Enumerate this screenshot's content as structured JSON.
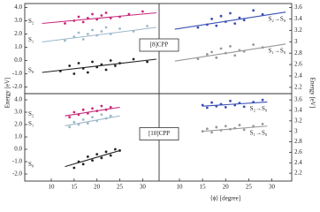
{
  "chart_data": [
    {
      "type": "scatter",
      "ylabel": "Energy [eV]",
      "annotation": "[8]CPP",
      "xlim": [
        4.2,
        33.6
      ],
      "ylim": [
        -2.5,
        4.3
      ],
      "yticks": [
        {
          "value": 4,
          "label": "4.0"
        },
        {
          "value": 3,
          "label": "3.0"
        },
        {
          "value": 2,
          "label": "2.0"
        },
        {
          "value": 1,
          "label": "1.0"
        },
        {
          "value": 0,
          "label": "0.0"
        },
        {
          "value": -1,
          "label": "-1.0"
        },
        {
          "value": -2,
          "label": "-2.0"
        }
      ],
      "series": [
        {
          "name": "S₂",
          "color": "#c8287a",
          "x": [
            13,
            15,
            16,
            17,
            18,
            19,
            20,
            21,
            22,
            23,
            25,
            27,
            30
          ],
          "values": [
            2.8,
            3.0,
            3.3,
            2.9,
            3.2,
            3.5,
            3.1,
            3.4,
            3.6,
            3.2,
            3.3,
            3.5,
            3.7
          ],
          "fit": {
            "x": [
              8,
              33
            ],
            "values": [
              2.8,
              3.6
            ]
          }
        },
        {
          "name": "S₁",
          "color": "#9cb8c8",
          "x": [
            13,
            15,
            16,
            17,
            18,
            19,
            20,
            21,
            22,
            23,
            25,
            28,
            31
          ],
          "values": [
            1.5,
            1.8,
            2.1,
            1.6,
            2.0,
            2.3,
            1.9,
            2.2,
            2.5,
            2.0,
            2.4,
            2.2,
            2.6
          ],
          "fit": {
            "x": [
              8,
              33
            ],
            "values": [
              1.4,
              2.5
            ]
          }
        },
        {
          "name": "S₀",
          "color": "#222222",
          "x": [
            12,
            14,
            15,
            16,
            17,
            18,
            19,
            20,
            21,
            22,
            23,
            24,
            25,
            28,
            31
          ],
          "values": [
            -0.8,
            -0.4,
            -1.0,
            -0.2,
            -0.6,
            -0.9,
            -0.1,
            -0.5,
            -0.3,
            -0.7,
            0.0,
            -0.4,
            -0.2,
            0.1,
            -0.1
          ],
          "fit": {
            "x": [
              8,
              33
            ],
            "values": [
              -0.9,
              0.1
            ]
          }
        }
      ]
    },
    {
      "type": "scatter",
      "ylabel": "Energy [eV]",
      "xlim": [
        5.6,
        34.3
      ],
      "ylim": [
        2.09,
        3.67
      ],
      "yticks": [
        3.6,
        3.4,
        3.2,
        3.0,
        2.8,
        2.6,
        2.4,
        2.2
      ],
      "series": [
        {
          "name": "S₂→S₀",
          "color": "#3a4fb5",
          "x": [
            14,
            16,
            17,
            18,
            19,
            20,
            21,
            22,
            23,
            24,
            26,
            28
          ],
          "values": [
            3.25,
            3.3,
            3.4,
            3.28,
            3.45,
            3.35,
            3.5,
            3.32,
            3.42,
            3.38,
            3.55,
            3.48
          ],
          "fit": {
            "x": [
              9,
              33
            ],
            "values": [
              3.22,
              3.52
            ]
          }
        },
        {
          "name": "S₁→S₀",
          "color": "#999999",
          "x": [
            14,
            16,
            17,
            18,
            19,
            20,
            21,
            22,
            23,
            24,
            26,
            28
          ],
          "values": [
            2.7,
            2.78,
            2.82,
            2.72,
            2.88,
            2.8,
            2.92,
            2.76,
            2.85,
            2.83,
            2.95,
            2.9
          ],
          "fit": {
            "x": [
              9,
              33
            ],
            "values": [
              2.66,
              2.96
            ]
          }
        }
      ]
    },
    {
      "type": "scatter",
      "annotation": "[10]CPP",
      "xlim": [
        4.2,
        33.6
      ],
      "ylim": [
        -2.57,
        4.5
      ],
      "xticks": [
        10,
        15,
        20,
        25,
        30
      ],
      "yticks": [
        {
          "value": 4,
          "label": "4.0"
        },
        {
          "value": 3,
          "label": "3.0"
        },
        {
          "value": 2,
          "label": "2.0"
        },
        {
          "value": 1,
          "label": "1.0"
        },
        {
          "value": 0,
          "label": "0.0"
        },
        {
          "value": -1,
          "label": "-1.0"
        },
        {
          "value": -2,
          "label": "-2.0"
        }
      ],
      "series": [
        {
          "name": "S₂",
          "color": "#c8287a",
          "x": [
            14,
            15,
            16,
            17,
            18,
            19,
            20,
            21,
            22,
            23
          ],
          "values": [
            2.6,
            3.0,
            2.8,
            3.2,
            2.9,
            3.3,
            3.1,
            3.5,
            3.2,
            3.4
          ],
          "fit": {
            "x": [
              13,
              25
            ],
            "values": [
              2.7,
              3.4
            ]
          }
        },
        {
          "name": "S₁",
          "color": "#9cb8c8",
          "x": [
            14,
            15,
            16,
            17,
            18,
            19,
            20,
            21,
            22,
            23
          ],
          "values": [
            1.8,
            2.2,
            2.0,
            2.4,
            2.1,
            2.6,
            2.3,
            2.8,
            2.5,
            2.7
          ],
          "fit": {
            "x": [
              13,
              25
            ],
            "values": [
              1.9,
              2.7
            ]
          }
        },
        {
          "name": "S₀",
          "color": "#222222",
          "x": [
            15,
            16,
            17,
            18,
            19,
            20,
            21,
            22,
            23,
            24,
            25
          ],
          "values": [
            -1.5,
            -1.0,
            -1.2,
            -0.6,
            -0.9,
            -0.4,
            -0.7,
            -0.2,
            -0.5,
            0.0,
            -0.1
          ],
          "fit": {
            "x": [
              13,
              25
            ],
            "values": [
              -1.4,
              -0.1
            ]
          }
        }
      ]
    },
    {
      "type": "scatter",
      "xlabel": "⟨ϕ⟩ [degree]",
      "xlim": [
        5.6,
        34.3
      ],
      "ylim": [
        2.05,
        3.72
      ],
      "xticks": [
        10,
        15,
        20,
        25,
        30
      ],
      "yticks": [
        3.6,
        3.4,
        3.2,
        3.0,
        2.8,
        2.6,
        2.4,
        2.2
      ],
      "series": [
        {
          "name": "S₂→S₀",
          "color": "#3a4fb5",
          "x": [
            15,
            16,
            17,
            18,
            19,
            20,
            21,
            22,
            23,
            24,
            26,
            28
          ],
          "values": [
            3.5,
            3.45,
            3.55,
            3.48,
            3.52,
            3.46,
            3.58,
            3.5,
            3.54,
            3.47,
            3.56,
            3.6
          ],
          "fit": {
            "x": [
              15,
              29
            ],
            "values": [
              3.48,
              3.56
            ]
          }
        },
        {
          "name": "S₁→S₀",
          "color": "#999999",
          "x": [
            15,
            16,
            17,
            18,
            19,
            20,
            21,
            22,
            23,
            24,
            26,
            28
          ],
          "values": [
            3.0,
            3.05,
            2.98,
            3.08,
            3.02,
            3.1,
            3.04,
            3.06,
            3.12,
            3.03,
            3.1,
            3.14
          ],
          "fit": {
            "x": [
              15,
              29
            ],
            "values": [
              3.0,
              3.1
            ]
          }
        }
      ]
    }
  ]
}
